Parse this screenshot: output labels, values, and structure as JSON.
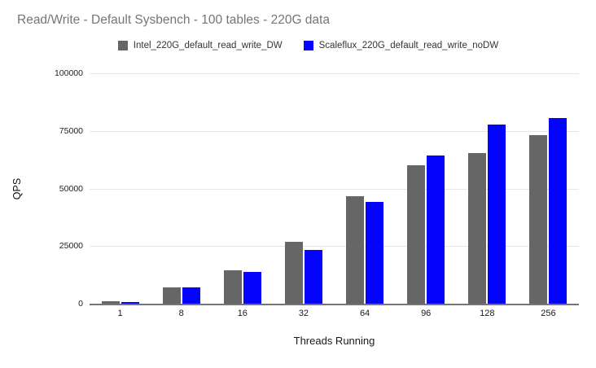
{
  "title": "Read/Write - Default Sysbench - 100 tables - 220G data",
  "colors": {
    "title_text": "#757575",
    "grid_line": "#e6e6e6",
    "axis_line": "#757575",
    "tick_label": "#222222",
    "series_gray": "#666666",
    "series_blue": "#0404fc",
    "background": "#ffffff"
  },
  "chart_data": {
    "type": "bar",
    "title": "Read/Write - Default Sysbench - 100 tables - 220G data",
    "xlabel": "Threads Running",
    "ylabel": "QPS",
    "categories": [
      "1",
      "8",
      "16",
      "32",
      "64",
      "96",
      "128",
      "256"
    ],
    "series": [
      {
        "name": "Intel_220G_default_read_write_DW",
        "color": "#666666",
        "values": [
          900,
          7000,
          14500,
          27000,
          46500,
          60000,
          65500,
          73000
        ]
      },
      {
        "name": "Scaleflux_220G_default_read_write_noDW",
        "color": "#0404fc",
        "values": [
          800,
          7200,
          13700,
          23300,
          44000,
          64200,
          77800,
          80500
        ]
      }
    ],
    "ylim": [
      0,
      100000
    ],
    "yticks": [
      0,
      25000,
      50000,
      75000,
      100000
    ],
    "ytick_labels": [
      "0",
      "25000",
      "50000",
      "75000",
      "100000"
    ],
    "grid": true,
    "legend_position": "top"
  }
}
